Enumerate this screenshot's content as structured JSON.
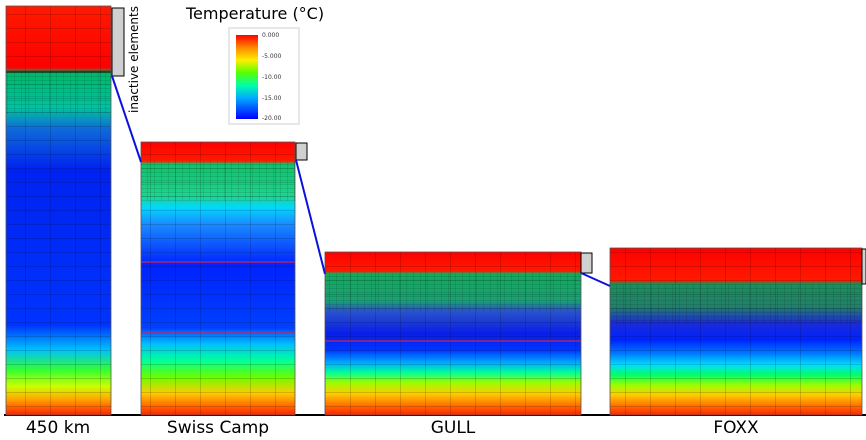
{
  "figure": {
    "title": "Temperature (°C)",
    "inactive_label": "inactive elements",
    "legend_ticks": [
      "0.000",
      "-5.000",
      "-10.00",
      "-15.00",
      "-20.00"
    ],
    "colorbar_colors": [
      "#ff0000",
      "#ff6600",
      "#ffcc00",
      "#ccff00",
      "#33ff00",
      "#00ffcc",
      "#00bfff",
      "#0055ff",
      "#0000ff"
    ],
    "columns": [
      {
        "label": "450 km"
      },
      {
        "label": "Swiss Camp"
      },
      {
        "label": "GULL"
      },
      {
        "label": "FOXX"
      }
    ]
  }
}
